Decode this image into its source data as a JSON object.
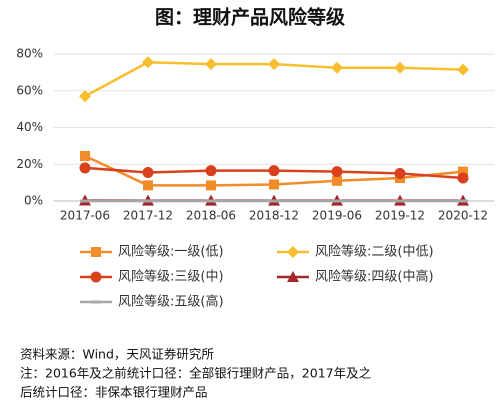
{
  "chart_data": {
    "type": "line",
    "title": "图：理财产品风险等级",
    "categories": [
      "2017-06",
      "2017-12",
      "2018-06",
      "2018-12",
      "2019-06",
      "2019-12",
      "2020-12"
    ],
    "series": [
      {
        "name": "风险等级:一级(低)",
        "color": "#f28c28",
        "marker": "square",
        "values": [
          24.5,
          8.5,
          8.5,
          9,
          11,
          12.5,
          16
        ]
      },
      {
        "name": "风险等级:二级(中低)",
        "color": "#f7bf2e",
        "marker": "diamond",
        "values": [
          57,
          75.5,
          74.5,
          74.5,
          72.5,
          72.5,
          71.5
        ]
      },
      {
        "name": "风险等级:三级(中)",
        "color": "#d9411e",
        "marker": "circle",
        "values": [
          18,
          15.5,
          16.5,
          16.5,
          16,
          15,
          12.5
        ]
      },
      {
        "name": "风险等级:四级(中高)",
        "color": "#a3262a",
        "marker": "triangle",
        "values": [
          0.3,
          0.2,
          0.2,
          0.2,
          0.2,
          0.2,
          0.2
        ]
      },
      {
        "name": "风险等级:五级(高)",
        "color": "#a6a6a6",
        "marker": "dash",
        "values": [
          0,
          0,
          0,
          0,
          0,
          0,
          0
        ]
      }
    ],
    "ylim": [
      0,
      80
    ],
    "yticks": [
      {
        "value": 0,
        "label": "0%"
      },
      {
        "value": 20,
        "label": "20%"
      },
      {
        "value": 40,
        "label": "40%"
      },
      {
        "value": 60,
        "label": "60%"
      },
      {
        "value": 80,
        "label": "80%"
      }
    ],
    "grid": true,
    "notes": [
      "资料来源：Wind，天风证券研究所",
      "注：2016年及之前统计口径：全部银行理财产品，2017年及之",
      "后统计口径：非保本银行理财产品"
    ]
  }
}
